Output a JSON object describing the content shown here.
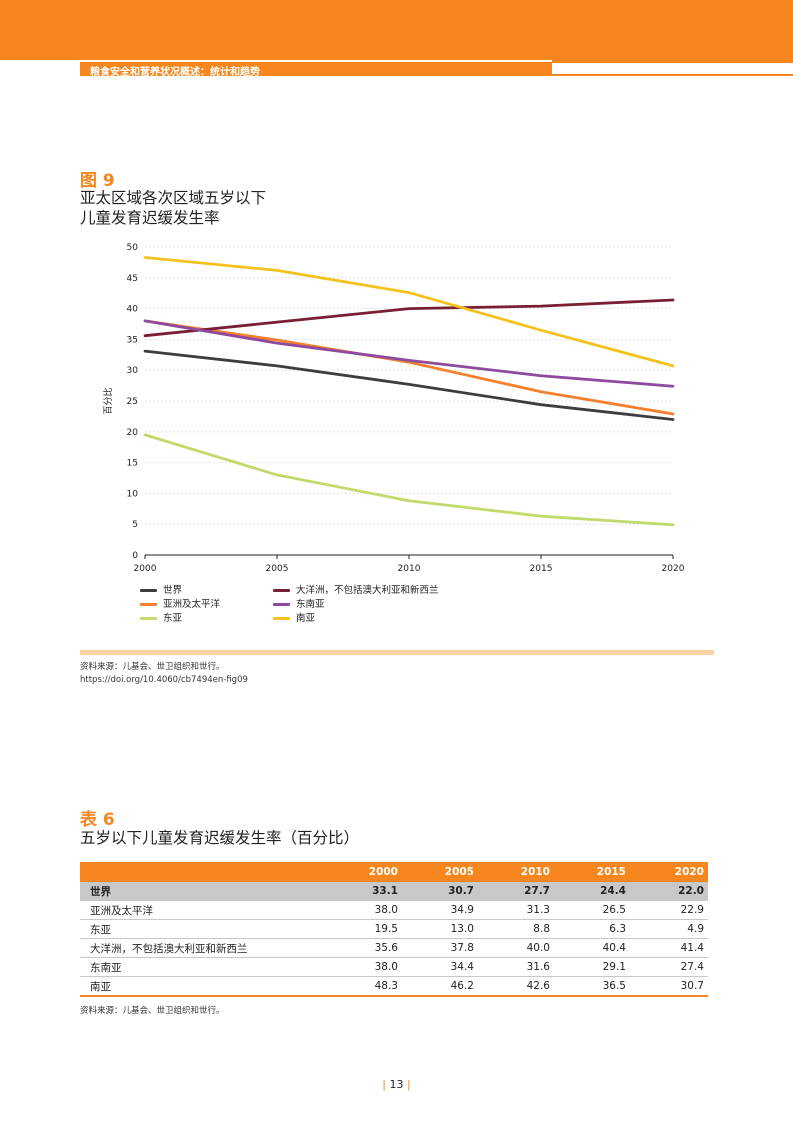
{
  "header": {
    "title": "粮食安全和营养状况概述：统计和趋势"
  },
  "figure": {
    "label": "图 9",
    "title_line1": "亚太区域各次区域五岁以下",
    "title_line2": "儿童发育迟缓发生率",
    "source_line1": "资料来源：儿基会、世卫组织和世行。",
    "source_line2": "https://doi.org/10.4060/cb7494en-fig09"
  },
  "chart_data": {
    "type": "line",
    "title": "亚太区域各次区域五岁以下儿童发育迟缓发生率",
    "xlabel": "",
    "ylabel": "百分比",
    "x": [
      2000,
      2005,
      2010,
      2015,
      2020
    ],
    "ylim": [
      0,
      50
    ],
    "yticks": [
      0,
      5,
      10,
      15,
      20,
      25,
      30,
      35,
      40,
      45,
      50
    ],
    "grid": true,
    "legend_position": "bottom",
    "series": [
      {
        "name": "世界",
        "color": "#3d3d3d",
        "values": [
          33.1,
          30.7,
          27.7,
          24.4,
          22.0
        ]
      },
      {
        "name": "亚洲及太平洋",
        "color": "#f4802e",
        "values": [
          38.0,
          34.9,
          31.3,
          26.5,
          22.9
        ]
      },
      {
        "name": "东亚",
        "color": "#c2d96b",
        "values": [
          19.5,
          13.0,
          8.8,
          6.3,
          4.9
        ]
      },
      {
        "name": "大洋洲，不包括澳大利亚和新西兰",
        "color": "#7a1e34",
        "values": [
          35.6,
          37.8,
          40.0,
          40.4,
          41.4
        ]
      },
      {
        "name": "东南亚",
        "color": "#8e4a9e",
        "values": [
          38.0,
          34.4,
          31.6,
          29.1,
          27.4
        ]
      },
      {
        "name": "南亚",
        "color": "#f5c21d",
        "values": [
          48.3,
          46.2,
          42.6,
          36.5,
          30.7
        ]
      }
    ]
  },
  "table": {
    "label": "表 6",
    "title": "五岁以下儿童发育迟缓发生率（百分比）",
    "headers": [
      "",
      "2000",
      "2005",
      "2010",
      "2015",
      "2020"
    ],
    "rows": [
      [
        "世界",
        "33.1",
        "30.7",
        "27.7",
        "24.4",
        "22.0"
      ],
      [
        "亚洲及太平洋",
        "38.0",
        "34.9",
        "31.3",
        "26.5",
        "22.9"
      ],
      [
        "东亚",
        "19.5",
        "13.0",
        "8.8",
        "6.3",
        "4.9"
      ],
      [
        "大洋洲，不包括澳大利亚和新西兰",
        "35.6",
        "37.8",
        "40.0",
        "40.4",
        "41.4"
      ],
      [
        "东南亚",
        "38.0",
        "34.4",
        "31.6",
        "29.1",
        "27.4"
      ],
      [
        "南亚",
        "48.3",
        "46.2",
        "42.6",
        "36.5",
        "30.7"
      ]
    ],
    "source": "资料来源：儿基会、世卫组织和世行。"
  },
  "page": {
    "number": "13"
  }
}
